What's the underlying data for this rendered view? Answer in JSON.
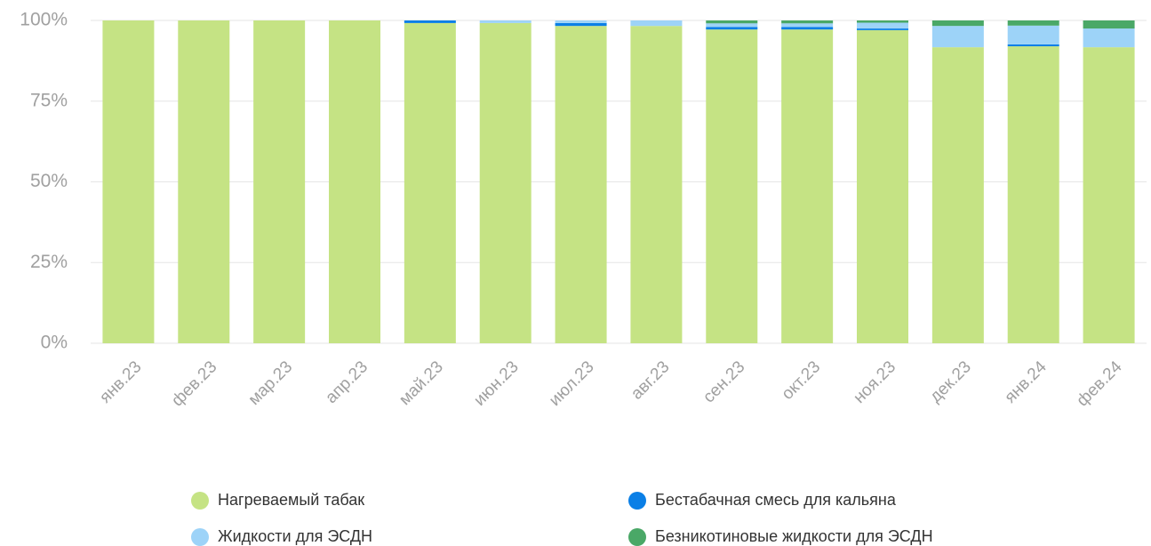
{
  "chart_data": {
    "type": "stacked_bar",
    "categories": [
      "янв.23",
      "фев.23",
      "мар.23",
      "апр.23",
      "май.23",
      "июн.23",
      "июл.23",
      "авг.23",
      "сен.23",
      "окт.23",
      "ноя.23",
      "дек.23",
      "янв.24",
      "фев.24"
    ],
    "series": [
      {
        "name": "Нагреваемый табак",
        "color": "#c5e384",
        "values": [
          100,
          100,
          100,
          100,
          99.2,
          99.2,
          98.3,
          98.3,
          97.2,
          97.2,
          97.0,
          91.7,
          92.0,
          91.7
        ]
      },
      {
        "name": "Бестабачная смесь для кальяна",
        "color": "#0a7fe6",
        "values": [
          0,
          0,
          0,
          0,
          0.8,
          0,
          0.9,
          0,
          0.8,
          0.8,
          0.5,
          0,
          0.6,
          0
        ]
      },
      {
        "name": "Жидкости для ЭСДН",
        "color": "#9dd3f8",
        "values": [
          0,
          0,
          0,
          0,
          0,
          0.8,
          0.8,
          1.7,
          1.1,
          1.1,
          1.8,
          6.6,
          5.8,
          5.8
        ]
      },
      {
        "name": "Безникотиновые жидкости для ЭСДН",
        "color": "#4aa867",
        "values": [
          0,
          0,
          0,
          0,
          0,
          0,
          0,
          0,
          0.9,
          0.9,
          0.7,
          1.7,
          1.6,
          2.5
        ]
      }
    ],
    "ylim": [
      0,
      100
    ],
    "yticks": [
      {
        "value": 0,
        "label": "0%"
      },
      {
        "value": 25,
        "label": "25%"
      },
      {
        "value": 50,
        "label": "50%"
      },
      {
        "value": 75,
        "label": "75%"
      },
      {
        "value": 100,
        "label": "100%"
      }
    ],
    "grid": true
  }
}
